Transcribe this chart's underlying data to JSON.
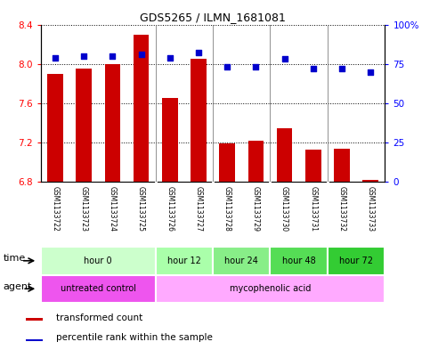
{
  "title": "GDS5265 / ILMN_1681081",
  "samples": [
    "GSM1133722",
    "GSM1133723",
    "GSM1133724",
    "GSM1133725",
    "GSM1133726",
    "GSM1133727",
    "GSM1133728",
    "GSM1133729",
    "GSM1133730",
    "GSM1133731",
    "GSM1133732",
    "GSM1133733"
  ],
  "bar_values": [
    7.9,
    7.95,
    8.0,
    8.3,
    7.65,
    8.05,
    7.19,
    7.22,
    7.35,
    7.13,
    7.14,
    6.82
  ],
  "bar_base": 6.8,
  "dot_values": [
    79,
    80,
    80,
    81,
    79,
    82,
    73,
    73,
    78,
    72,
    72,
    70
  ],
  "ylim_left": [
    6.8,
    8.4
  ],
  "ylim_right": [
    0,
    100
  ],
  "yticks_left": [
    6.8,
    7.2,
    7.6,
    8.0,
    8.4
  ],
  "yticks_right": [
    0,
    25,
    50,
    75,
    100
  ],
  "bar_color": "#cc0000",
  "dot_color": "#0000cc",
  "bg_color": "#ffffff",
  "time_groups": [
    {
      "label": "hour 0",
      "start": 0,
      "end": 4,
      "color": "#ccffcc"
    },
    {
      "label": "hour 12",
      "start": 4,
      "end": 6,
      "color": "#aaffaa"
    },
    {
      "label": "hour 24",
      "start": 6,
      "end": 8,
      "color": "#88ee88"
    },
    {
      "label": "hour 48",
      "start": 8,
      "end": 10,
      "color": "#55dd55"
    },
    {
      "label": "hour 72",
      "start": 10,
      "end": 12,
      "color": "#33cc33"
    }
  ],
  "agent_groups": [
    {
      "label": "untreated control",
      "start": 0,
      "end": 4,
      "color": "#ee55ee"
    },
    {
      "label": "mycophenolic acid",
      "start": 4,
      "end": 12,
      "color": "#ffaaff"
    }
  ],
  "legend_bar_label": "transformed count",
  "legend_dot_label": "percentile rank within the sample",
  "sample_bg_color": "#bbbbbb",
  "figsize": [
    4.83,
    3.93
  ],
  "dpi": 100
}
